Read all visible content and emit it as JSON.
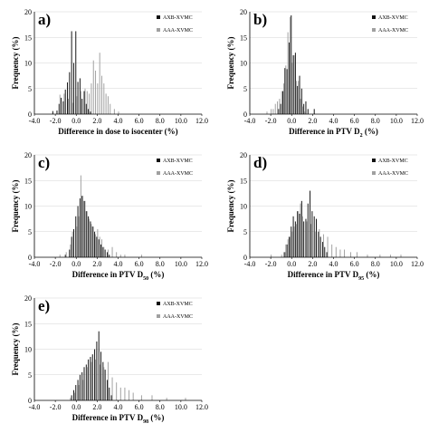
{
  "chart_data": [
    {
      "type": "bar",
      "panel_label": "a)",
      "xlabel": "Difference in dose to isocenter (%)",
      "xlabel_sub": "",
      "xlabel_suffix": "",
      "ylabel": "Frequency (%)",
      "xlim": [
        -4.0,
        12.0
      ],
      "ylim": [
        0,
        20
      ],
      "xticks": [
        "-4.0",
        "-2.0",
        "0.0",
        "2.0",
        "4.0",
        "6.0",
        "8.0",
        "10.0",
        "12.0"
      ],
      "yticks": [
        "0",
        "5",
        "10",
        "15",
        "20"
      ],
      "series": [
        {
          "name": "AXB-XVMC",
          "color": "#111111",
          "x": [
            -2.2,
            -1.8,
            -1.6,
            -1.4,
            -1.2,
            -1.0,
            -0.8,
            -0.6,
            -0.4,
            -0.2,
            0.0,
            0.2,
            0.4,
            0.6,
            0.8,
            1.0,
            1.2,
            1.4
          ],
          "values": [
            0.6,
            0.7,
            2.0,
            3.2,
            2.5,
            4.8,
            6.2,
            8.2,
            16.2,
            10.0,
            16.2,
            6.3,
            7.0,
            3.0,
            4.5,
            2.0,
            1.0,
            0.5
          ]
        },
        {
          "name": "AAA-XVMC",
          "color": "#a0a0a0",
          "x": [
            -1.6,
            -1.2,
            -0.8,
            -0.4,
            0.0,
            0.4,
            0.8,
            1.0,
            1.2,
            1.4,
            1.6,
            1.8,
            2.0,
            2.2,
            2.4,
            2.6,
            2.8,
            3.0,
            3.2,
            3.6,
            4.0
          ],
          "values": [
            3.8,
            4.0,
            3.0,
            2.2,
            3.5,
            4.5,
            5.0,
            4.5,
            4.0,
            6.0,
            10.5,
            8.5,
            6.0,
            12.0,
            7.5,
            6.0,
            4.0,
            3.5,
            2.0,
            1.0,
            0.5
          ]
        }
      ]
    },
    {
      "type": "bar",
      "panel_label": "b)",
      "xlabel": "Difference in PTV D",
      "xlabel_sub": "2",
      "xlabel_suffix": " (%)",
      "ylabel": "Frequency (%)",
      "xlim": [
        -4.0,
        12.0
      ],
      "ylim": [
        0,
        20
      ],
      "xticks": [
        "-4.0",
        "-2.0",
        "0.0",
        "2.0",
        "4.0",
        "6.0",
        "8.0",
        "10.0",
        "12.0"
      ],
      "yticks": [
        "0",
        "5",
        "10",
        "15",
        "20"
      ],
      "series": [
        {
          "name": "AXB-XVMC",
          "color": "#111111",
          "x": [
            -1.2,
            -1.0,
            -0.8,
            -0.6,
            -0.4,
            -0.2,
            0.0,
            0.2,
            0.4,
            0.6,
            0.8,
            1.0,
            1.2,
            1.4,
            1.6,
            2.2
          ],
          "values": [
            1.0,
            2.0,
            4.5,
            9.0,
            8.8,
            14.0,
            19.3,
            11.5,
            12.0,
            5.5,
            7.5,
            5.0,
            2.0,
            2.5,
            1.0,
            1.0
          ]
        },
        {
          "name": "AAA-XVMC",
          "color": "#a0a0a0",
          "x": [
            -2.4,
            -2.0,
            -1.8,
            -1.6,
            -1.4,
            -1.2,
            -1.0,
            -0.8,
            -0.6,
            -0.4,
            -0.2,
            0.0,
            0.2,
            0.4,
            0.6,
            0.8,
            1.0,
            1.2
          ],
          "values": [
            0.5,
            1.0,
            1.0,
            2.0,
            2.5,
            3.0,
            4.5,
            6.0,
            9.5,
            16.0,
            19.0,
            10.0,
            11.5,
            6.5,
            6.5,
            3.0,
            1.5,
            0.5
          ]
        }
      ]
    },
    {
      "type": "bar",
      "panel_label": "c)",
      "xlabel": "Difference in PTV D",
      "xlabel_sub": "50",
      "xlabel_suffix": " (%)",
      "ylabel": "Frequency (%)",
      "xlim": [
        -4.0,
        12.0
      ],
      "ylim": [
        0,
        20
      ],
      "xticks": [
        "-4.0",
        "-2.0",
        "0.0",
        "2.0",
        "4.0",
        "6.0",
        "8.0",
        "10.0",
        "12.0"
      ],
      "yticks": [
        "0",
        "5",
        "10",
        "15",
        "20"
      ],
      "series": [
        {
          "name": "AXB-XVMC",
          "color": "#111111",
          "x": [
            -1.0,
            -0.6,
            -0.4,
            -0.2,
            0.0,
            0.2,
            0.4,
            0.6,
            0.8,
            1.0,
            1.2,
            1.4,
            1.6,
            1.8,
            2.0,
            2.2,
            2.4,
            2.6,
            2.8,
            3.0,
            3.2
          ],
          "values": [
            0.5,
            1.5,
            4.0,
            5.5,
            8.0,
            10.0,
            11.5,
            12.0,
            11.0,
            9.0,
            8.0,
            7.0,
            6.0,
            5.0,
            4.0,
            3.5,
            2.5,
            2.0,
            1.5,
            1.0,
            0.5
          ]
        },
        {
          "name": "AAA-XVMC",
          "color": "#a0a0a0",
          "x": [
            -1.6,
            -1.0,
            -0.6,
            -0.4,
            0.0,
            0.2,
            0.4,
            0.6,
            0.8,
            1.0,
            1.2,
            1.4,
            1.6,
            1.8,
            2.0,
            2.2,
            2.4,
            2.6,
            3.0,
            3.4,
            3.8,
            4.2,
            4.6,
            6.2
          ],
          "values": [
            0.5,
            1.0,
            2.5,
            5.0,
            6.0,
            8.0,
            16.0,
            12.0,
            11.0,
            9.0,
            7.5,
            6.5,
            6.0,
            4.5,
            5.5,
            4.0,
            3.5,
            2.0,
            1.5,
            2.0,
            1.0,
            0.5,
            0.5,
            0.5
          ]
        }
      ]
    },
    {
      "type": "bar",
      "panel_label": "d)",
      "xlabel": "Difference in PTV D",
      "xlabel_sub": "95",
      "xlabel_suffix": " (%)",
      "ylabel": "Frequency (%)",
      "xlim": [
        -4.0,
        12.0
      ],
      "ylim": [
        0,
        20
      ],
      "xticks": [
        "-4.0",
        "-2.0",
        "0.0",
        "2.0",
        "4.0",
        "6.0",
        "8.0",
        "10.0",
        "12.0"
      ],
      "yticks": [
        "0",
        "5",
        "10",
        "15",
        "20"
      ],
      "series": [
        {
          "name": "AXB-XVMC",
          "color": "#111111",
          "x": [
            -0.6,
            -0.4,
            -0.2,
            0.0,
            0.2,
            0.4,
            0.6,
            0.8,
            1.0,
            1.2,
            1.4,
            1.6,
            1.8,
            2.0,
            2.2,
            2.4,
            2.6,
            2.8,
            3.0,
            3.2,
            3.4
          ],
          "values": [
            1.0,
            2.5,
            4.0,
            6.0,
            8.0,
            7.0,
            9.0,
            8.5,
            11.0,
            7.0,
            7.5,
            10.5,
            13.0,
            9.0,
            8.0,
            7.5,
            5.0,
            4.0,
            3.0,
            2.0,
            1.0
          ]
        },
        {
          "name": "AAA-XVMC",
          "color": "#a0a0a0",
          "x": [
            -2.0,
            -1.0,
            -0.8,
            -0.6,
            -0.4,
            -0.2,
            0.0,
            0.2,
            0.4,
            0.6,
            0.8,
            1.0,
            1.4,
            1.8,
            2.2,
            2.6,
            3.0,
            3.4,
            3.8,
            4.2,
            4.6,
            5.0,
            5.6,
            6.2,
            7.2,
            8.4,
            9.4,
            10.4
          ],
          "values": [
            0.5,
            0.5,
            1.0,
            2.5,
            3.5,
            4.0,
            5.0,
            6.0,
            6.5,
            9.0,
            10.5,
            8.0,
            7.0,
            6.5,
            5.0,
            5.5,
            4.5,
            4.0,
            2.5,
            2.0,
            1.5,
            1.5,
            1.0,
            1.0,
            0.5,
            0.5,
            0.5,
            0.5
          ]
        }
      ]
    },
    {
      "type": "bar",
      "panel_label": "e)",
      "xlabel": "Difference in PTV D",
      "xlabel_sub": "98",
      "xlabel_suffix": " (%)",
      "ylabel": "Frequency (%)",
      "xlim": [
        -4.0,
        12.0
      ],
      "ylim": [
        0,
        20
      ],
      "xticks": [
        "-4.0",
        "-2.0",
        "0.0",
        "2.0",
        "4.0",
        "6.0",
        "8.0",
        "10.0",
        "12.0"
      ],
      "yticks": [
        "0",
        "5",
        "10",
        "15",
        "20"
      ],
      "series": [
        {
          "name": "AXB-XVMC",
          "color": "#111111",
          "x": [
            -0.4,
            -0.2,
            0.0,
            0.2,
            0.4,
            0.6,
            0.8,
            1.0,
            1.2,
            1.4,
            1.6,
            1.8,
            2.0,
            2.2,
            2.4,
            2.6,
            2.8,
            3.0,
            3.2,
            3.4
          ],
          "values": [
            1.0,
            2.0,
            3.0,
            4.0,
            5.0,
            5.5,
            6.5,
            7.0,
            8.0,
            8.5,
            9.0,
            10.0,
            11.5,
            13.5,
            9.5,
            7.5,
            6.0,
            4.0,
            2.5,
            1.0
          ]
        },
        {
          "name": "AAA-XVMC",
          "color": "#a0a0a0",
          "x": [
            -0.6,
            -0.2,
            0.2,
            0.6,
            1.0,
            1.4,
            1.8,
            2.2,
            2.6,
            3.0,
            3.4,
            3.8,
            4.2,
            4.6,
            5.0,
            5.4,
            6.2,
            7.2,
            8.6,
            10.4
          ],
          "values": [
            0.5,
            1.5,
            3.0,
            4.0,
            6.5,
            7.5,
            8.0,
            7.0,
            6.5,
            7.5,
            4.5,
            3.5,
            2.5,
            2.5,
            2.0,
            1.5,
            1.0,
            1.0,
            0.5,
            0.5
          ]
        }
      ]
    }
  ]
}
